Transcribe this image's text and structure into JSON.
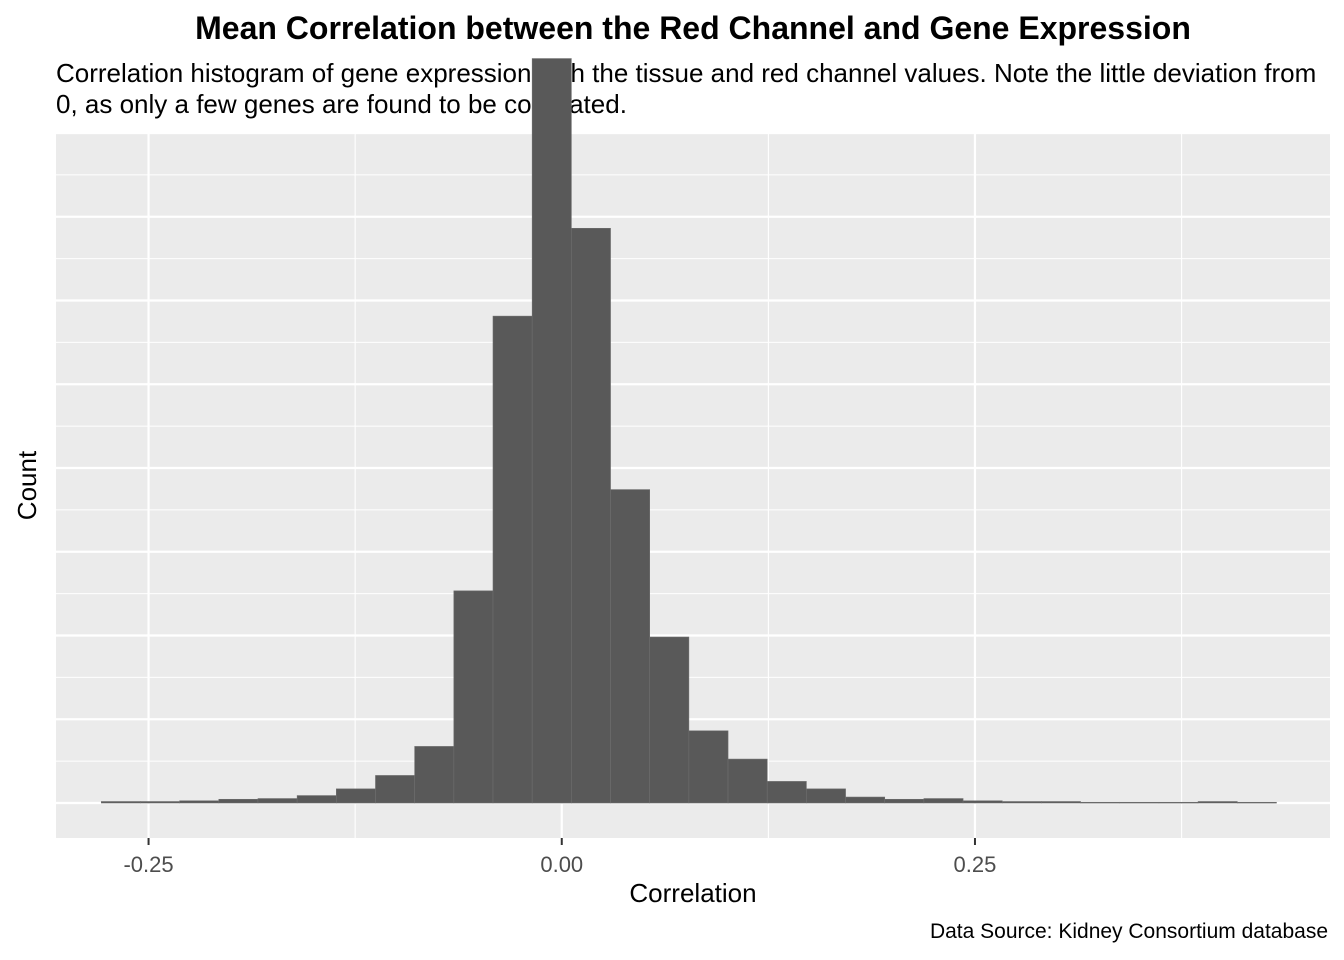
{
  "chart_data": {
    "type": "bar",
    "title": "Mean Correlation between the Red Channel and Gene Expression",
    "subtitle": "Correlation histogram of gene expression with the tissue and red channel values. Note the little deviation from 0, as only a few genes are found to be correlated.",
    "caption": "Data Source: Kidney Consortium database",
    "xlabel": "Correlation",
    "ylabel": "Count",
    "x_ticks": [
      -0.25,
      0.0,
      0.25
    ],
    "x_tick_labels": [
      "-0.25",
      "0.00",
      "0.25"
    ],
    "xlim": [
      -0.306,
      0.4648
    ],
    "ylim": [
      -0.047,
      0.9
    ],
    "y_tick_labels_shown": false,
    "grid": true,
    "bin_width": 0.0237,
    "bins_start": -0.2786,
    "values": [
      0.002,
      0.002,
      0.003,
      0.005,
      0.006,
      0.01,
      0.019,
      0.037,
      0.076,
      0.285,
      0.654,
      1.0,
      0.772,
      0.421,
      0.223,
      0.097,
      0.059,
      0.029,
      0.019,
      0.008,
      0.005,
      0.006,
      0.003,
      0.002,
      0.002,
      0.001,
      0.001,
      0.001,
      0.002,
      0.001
    ],
    "colors": {
      "bar_fill": "#595959",
      "bar_edge": "#6e6e6e",
      "panel_background": "#ebebeb",
      "grid": "#ffffff",
      "tick_label": "#4d4d4d"
    }
  }
}
